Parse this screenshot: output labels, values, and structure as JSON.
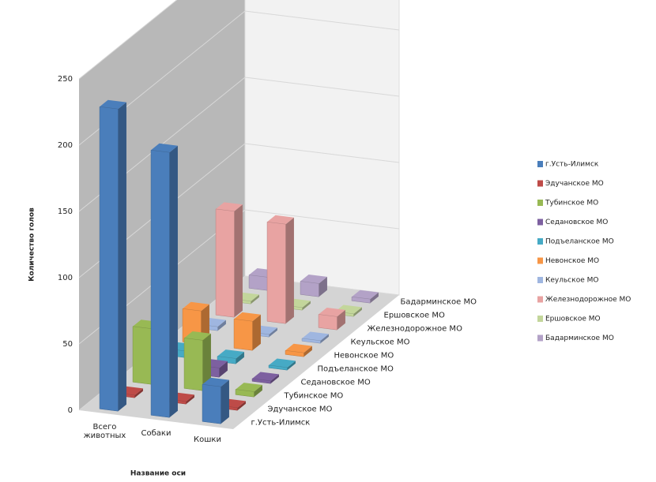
{
  "chart_data": {
    "type": "bar3d",
    "y_label": "Количество голов",
    "x_label": "Название оси",
    "categories": [
      "Всего животных",
      "Собаки",
      "Кошки"
    ],
    "ylim": [
      0,
      250
    ],
    "yticks": [
      0,
      50,
      100,
      150,
      200,
      250
    ],
    "grid": true,
    "series": [
      {
        "name": "г.Усть-Илимск",
        "color": "#4a7ebb",
        "values": [
          228,
          200,
          28
        ]
      },
      {
        "name": "Эдучанское МО",
        "color": "#be4b48",
        "values": [
          2,
          2,
          2
        ]
      },
      {
        "name": "Тубинское МО",
        "color": "#98b954",
        "values": [
          42,
          38,
          4
        ]
      },
      {
        "name": "Седановское МО",
        "color": "#7d60a0",
        "values": [
          8,
          7,
          2
        ]
      },
      {
        "name": "Подъеланское МО",
        "color": "#46aac5",
        "values": [
          5,
          4,
          2
        ]
      },
      {
        "name": "Невонское МО",
        "color": "#f79646",
        "values": [
          25,
          22,
          3
        ]
      },
      {
        "name": "Кеульское МО",
        "color": "#9fb6e0",
        "values": [
          3,
          2,
          2
        ]
      },
      {
        "name": "Железнодорожное МО",
        "color": "#e8a3a2",
        "values": [
          80,
          75,
          10
        ]
      },
      {
        "name": "Ершовское МО",
        "color": "#c3d69b",
        "values": [
          2,
          2,
          2
        ]
      },
      {
        "name": "Бадарминское МО",
        "color": "#b3a2c7",
        "values": [
          10,
          10,
          3
        ]
      }
    ],
    "legend": "right"
  }
}
